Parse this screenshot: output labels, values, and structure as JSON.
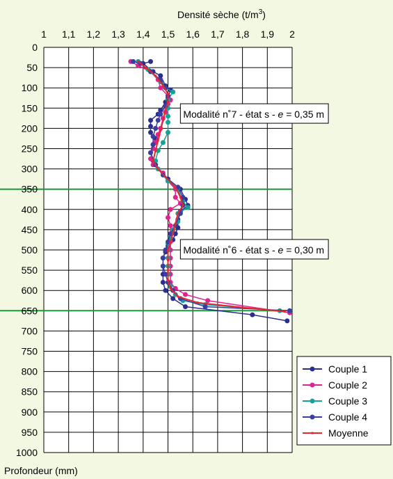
{
  "chart_data": {
    "type": "line",
    "title": "",
    "xlabel": "Densité sèche (t/m",
    "xlabel_sup": "3",
    "xlabel_close": ")",
    "ylabel": "Profondeur (mm)",
    "xlim": [
      1,
      2
    ],
    "ylim": [
      0,
      1000
    ],
    "x_ticks": [
      "1",
      "1,1",
      "1,2",
      "1,3",
      "1,4",
      "1,5",
      "1,6",
      "1,7",
      "1,8",
      "1,9",
      "2"
    ],
    "y_ticks": [
      "0",
      "50",
      "100",
      "150",
      "200",
      "250",
      "300",
      "350",
      "400",
      "450",
      "500",
      "550",
      "600",
      "650",
      "700",
      "750",
      "800",
      "850",
      "900",
      "950",
      "1000"
    ],
    "horizontal_lines": [
      {
        "y": 350,
        "color": "#1a9a3a"
      },
      {
        "y": 650,
        "color": "#1a9a3a"
      }
    ],
    "annotations": [
      {
        "text": "Modalité n˚7 - état s - ",
        "italic": "e",
        "rest": " = 0,35 m",
        "x": 1.55,
        "y": 165
      },
      {
        "text": "Modalité n˚6 - état s - ",
        "italic": "e",
        "rest": " = 0,30 m",
        "x": 1.55,
        "y": 500
      }
    ],
    "legend_position": "bottom-right",
    "series": [
      {
        "name": "Couple 1",
        "color": "#2b2e8c",
        "marker": true,
        "points": [
          [
            1.43,
            35
          ],
          [
            1.4,
            40
          ],
          [
            1.44,
            60
          ],
          [
            1.47,
            70
          ],
          [
            1.49,
            95
          ],
          [
            1.51,
            105
          ],
          [
            1.5,
            125
          ],
          [
            1.49,
            135
          ],
          [
            1.47,
            155
          ],
          [
            1.46,
            165
          ],
          [
            1.43,
            180
          ],
          [
            1.43,
            195
          ],
          [
            1.43,
            210
          ],
          [
            1.45,
            225
          ],
          [
            1.44,
            240
          ],
          [
            1.43,
            260
          ],
          [
            1.44,
            280
          ],
          [
            1.45,
            290
          ],
          [
            1.5,
            325
          ],
          [
            1.55,
            350
          ],
          [
            1.57,
            375
          ],
          [
            1.58,
            390
          ],
          [
            1.55,
            405
          ],
          [
            1.54,
            425
          ],
          [
            1.54,
            445
          ],
          [
            1.53,
            460
          ],
          [
            1.52,
            475
          ],
          [
            1.5,
            490
          ],
          [
            1.49,
            505
          ],
          [
            1.48,
            520
          ],
          [
            1.48,
            540
          ],
          [
            1.48,
            560
          ],
          [
            1.48,
            580
          ],
          [
            1.49,
            600
          ],
          [
            1.52,
            620
          ],
          [
            1.57,
            640
          ],
          [
            1.84,
            660
          ],
          [
            1.98,
            675
          ]
        ]
      },
      {
        "name": "Couple 2",
        "color": "#e0228f",
        "marker": true,
        "points": [
          [
            1.35,
            35
          ],
          [
            1.38,
            45
          ],
          [
            1.43,
            60
          ],
          [
            1.46,
            80
          ],
          [
            1.47,
            100
          ],
          [
            1.5,
            120
          ],
          [
            1.51,
            130
          ],
          [
            1.5,
            140
          ],
          [
            1.49,
            160
          ],
          [
            1.48,
            175
          ],
          [
            1.47,
            200
          ],
          [
            1.46,
            215
          ],
          [
            1.45,
            235
          ],
          [
            1.44,
            250
          ],
          [
            1.43,
            275
          ],
          [
            1.44,
            290
          ],
          [
            1.48,
            310
          ],
          [
            1.5,
            330
          ],
          [
            1.53,
            350
          ],
          [
            1.53,
            370
          ],
          [
            1.55,
            385
          ],
          [
            1.51,
            400
          ],
          [
            1.5,
            420
          ],
          [
            1.51,
            440
          ],
          [
            1.51,
            460
          ],
          [
            1.51,
            480
          ],
          [
            1.51,
            500
          ],
          [
            1.51,
            520
          ],
          [
            1.51,
            540
          ],
          [
            1.51,
            560
          ],
          [
            1.51,
            580
          ],
          [
            1.53,
            595
          ],
          [
            1.57,
            610
          ],
          [
            1.66,
            625
          ],
          [
            1.99,
            655
          ]
        ]
      },
      {
        "name": "Couple 3",
        "color": "#14a396",
        "marker": true,
        "points": [
          [
            1.38,
            35
          ],
          [
            1.42,
            55
          ],
          [
            1.47,
            85
          ],
          [
            1.49,
            100
          ],
          [
            1.52,
            110
          ],
          [
            1.5,
            130
          ],
          [
            1.5,
            150
          ],
          [
            1.5,
            170
          ],
          [
            1.5,
            185
          ],
          [
            1.5,
            210
          ],
          [
            1.48,
            235
          ],
          [
            1.46,
            255
          ],
          [
            1.45,
            280
          ],
          [
            1.46,
            300
          ],
          [
            1.5,
            330
          ],
          [
            1.54,
            350
          ],
          [
            1.56,
            380
          ],
          [
            1.58,
            395
          ],
          [
            1.54,
            410
          ],
          [
            1.54,
            430
          ],
          [
            1.52,
            450
          ],
          [
            1.51,
            470
          ],
          [
            1.5,
            485
          ],
          [
            1.5,
            500
          ],
          [
            1.5,
            520
          ],
          [
            1.5,
            540
          ],
          [
            1.5,
            560
          ],
          [
            1.5,
            580
          ],
          [
            1.51,
            590
          ],
          [
            1.53,
            610
          ],
          [
            1.56,
            625
          ],
          [
            1.65,
            635
          ],
          [
            1.95,
            650
          ]
        ]
      },
      {
        "name": "Couple 4",
        "color": "#3a3ea0",
        "marker": true,
        "points": [
          [
            1.36,
            35
          ],
          [
            1.39,
            40
          ],
          [
            1.43,
            60
          ],
          [
            1.47,
            80
          ],
          [
            1.49,
            100
          ],
          [
            1.5,
            120
          ],
          [
            1.49,
            145
          ],
          [
            1.47,
            165
          ],
          [
            1.46,
            180
          ],
          [
            1.45,
            200
          ],
          [
            1.44,
            220
          ],
          [
            1.44,
            240
          ],
          [
            1.43,
            260
          ],
          [
            1.45,
            290
          ],
          [
            1.48,
            315
          ],
          [
            1.54,
            345
          ],
          [
            1.56,
            370
          ],
          [
            1.56,
            390
          ],
          [
            1.55,
            410
          ],
          [
            1.53,
            440
          ],
          [
            1.51,
            460
          ],
          [
            1.5,
            480
          ],
          [
            1.49,
            500
          ],
          [
            1.48,
            520
          ],
          [
            1.48,
            540
          ],
          [
            1.49,
            560
          ],
          [
            1.5,
            580
          ],
          [
            1.52,
            600
          ],
          [
            1.55,
            620
          ],
          [
            1.65,
            640
          ],
          [
            1.99,
            650
          ]
        ]
      },
      {
        "name": "Moyenne",
        "color": "#e8262c",
        "marker": false,
        "points": [
          [
            1.38,
            35
          ],
          [
            1.41,
            50
          ],
          [
            1.45,
            70
          ],
          [
            1.48,
            95
          ],
          [
            1.5,
            115
          ],
          [
            1.5,
            135
          ],
          [
            1.49,
            155
          ],
          [
            1.48,
            180
          ],
          [
            1.47,
            205
          ],
          [
            1.46,
            230
          ],
          [
            1.45,
            255
          ],
          [
            1.44,
            280
          ],
          [
            1.46,
            300
          ],
          [
            1.49,
            320
          ],
          [
            1.53,
            345
          ],
          [
            1.55,
            370
          ],
          [
            1.56,
            390
          ],
          [
            1.54,
            410
          ],
          [
            1.53,
            435
          ],
          [
            1.52,
            460
          ],
          [
            1.51,
            480
          ],
          [
            1.5,
            500
          ],
          [
            1.5,
            525
          ],
          [
            1.5,
            550
          ],
          [
            1.5,
            575
          ],
          [
            1.51,
            595
          ],
          [
            1.54,
            615
          ],
          [
            1.62,
            630
          ],
          [
            1.8,
            642
          ],
          [
            1.97,
            652
          ]
        ]
      }
    ]
  }
}
